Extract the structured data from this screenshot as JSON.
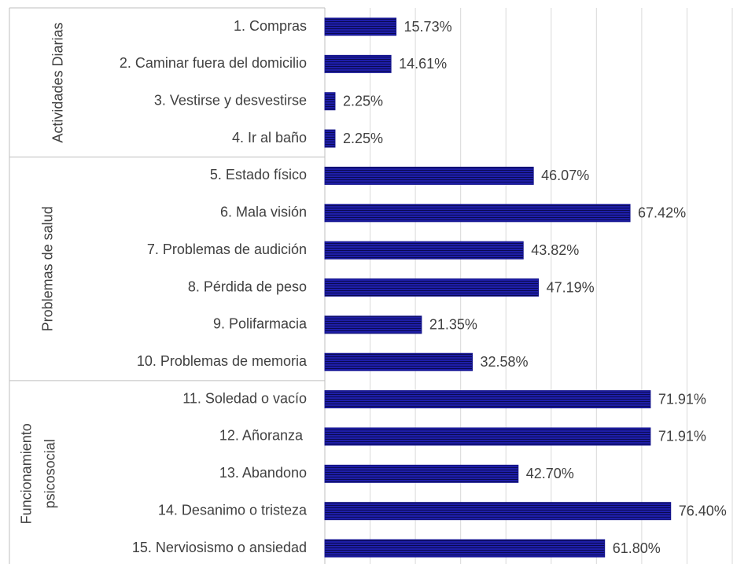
{
  "chart_data": {
    "type": "grouped-hbar",
    "color": "#14148c",
    "xlim": [
      0,
      90
    ],
    "xticks": [
      0,
      10,
      20,
      30,
      40,
      50,
      60,
      70,
      80,
      90
    ],
    "grid": true,
    "tick_labels": false,
    "groups": [
      {
        "name": [
          "Actividades Diarias"
        ],
        "categories": [
          "1. Compras",
          "2. Caminar fuera del domicilio",
          "3. Vestirse y desvestirse",
          "4. Ir al baño"
        ],
        "values": [
          15.73,
          14.61,
          2.25,
          2.25
        ],
        "value_labels": [
          "15.73%",
          "14.61%",
          "2.25%",
          "2.25%"
        ]
      },
      {
        "name": [
          "Problemas de salud"
        ],
        "categories": [
          "5. Estado físico",
          "6. Mala visión",
          "7. Problemas de audición",
          "8. Pérdida de peso",
          "9. Polifarmacia",
          "10. Problemas de memoria"
        ],
        "values": [
          46.07,
          67.42,
          43.82,
          47.19,
          21.35,
          32.58
        ],
        "value_labels": [
          "46.07%",
          "67.42%",
          "43.82%",
          "47.19%",
          "21.35%",
          "32.58%"
        ]
      },
      {
        "name": [
          "Funcionamiento",
          "psicosocial"
        ],
        "categories": [
          "11. Soledad o vacío",
          "12. Añoranza ",
          "13. Abandono",
          "14. Desanimo o tristeza",
          "15. Nerviosismo o ansiedad"
        ],
        "values": [
          71.91,
          71.91,
          42.7,
          76.4,
          61.8
        ],
        "value_labels": [
          "71.91%",
          "71.91%",
          "42.70%",
          "76.40%",
          "61.80%"
        ]
      }
    ]
  }
}
